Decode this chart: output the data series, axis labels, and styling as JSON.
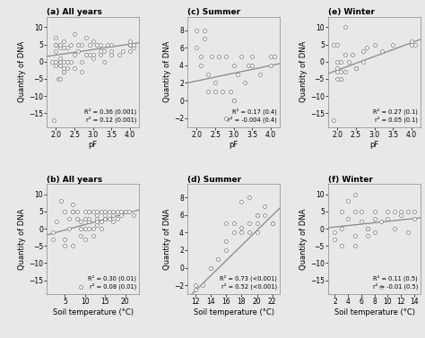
{
  "panels": [
    {
      "label": "(a) All years",
      "xlabel": "pF",
      "ylabel": "Quantity of DNA",
      "xlim": [
        1.75,
        4.25
      ],
      "ylim": [
        -19,
        13
      ],
      "xticks": [
        2,
        2.5,
        3,
        3.5,
        4
      ],
      "yticks": [
        -15,
        -10,
        -5,
        0,
        5,
        10
      ],
      "annotation": "R² = 0.36 (0.001)\nr² = 0.12 (0.001)",
      "scatter_x": [
        1.9,
        2.0,
        2.0,
        2.0,
        2.0,
        2.0,
        2.0,
        2.1,
        2.1,
        2.1,
        2.1,
        2.1,
        2.2,
        2.2,
        2.2,
        2.2,
        2.2,
        2.3,
        2.3,
        2.4,
        2.4,
        2.5,
        2.5,
        2.6,
        2.6,
        2.7,
        2.7,
        2.8,
        2.8,
        2.9,
        2.9,
        3.0,
        3.0,
        3.1,
        3.2,
        3.2,
        3.3,
        3.3,
        3.4,
        3.5,
        3.5,
        3.7,
        3.8,
        4.0,
        4.0,
        4.0,
        4.0,
        4.1,
        4.1,
        1.95,
        2.05,
        2.1,
        2.2,
        2.3,
        2.5,
        2.7,
        3.0,
        3.2,
        3.5,
        4.0
      ],
      "scatter_y": [
        0,
        -1,
        0,
        3,
        5,
        5,
        7,
        -1,
        0,
        1,
        4,
        5,
        -3,
        -2,
        0,
        4,
        6,
        0,
        4,
        0,
        5,
        2,
        8,
        3,
        5,
        -3,
        5,
        2,
        7,
        2,
        5,
        2,
        6,
        5,
        2,
        5,
        0,
        3,
        5,
        3,
        5,
        2,
        3,
        5,
        5,
        5,
        6,
        4,
        5,
        -17,
        -5,
        -5,
        -3,
        -2,
        -2,
        0,
        1,
        3,
        2,
        3
      ],
      "line_x": [
        1.75,
        4.25
      ],
      "line_y": [
        1.5,
        5.5
      ]
    },
    {
      "label": "(c) Summer",
      "xlabel": "pF",
      "ylabel": "Quantity of DNA",
      "xlim": [
        1.75,
        4.25
      ],
      "ylim": [
        -3,
        9.5
      ],
      "xticks": [
        2,
        2.5,
        3,
        3.5,
        4
      ],
      "yticks": [
        -2,
        0,
        2,
        4,
        6,
        8
      ],
      "annotation": "R² = 0.17 (0.4)\nr² = -0.004 (0.4)",
      "scatter_x": [
        2.0,
        2.0,
        2.1,
        2.2,
        2.2,
        2.3,
        2.4,
        2.5,
        2.6,
        2.7,
        2.8,
        2.9,
        3.0,
        3.0,
        3.1,
        3.2,
        3.3,
        3.4,
        3.5,
        3.7,
        4.0,
        4.0,
        4.1,
        2.1,
        2.3,
        2.5,
        2.8,
        3.0,
        3.5
      ],
      "scatter_y": [
        6,
        8,
        5,
        7,
        8,
        1,
        5,
        2,
        5,
        1,
        -2,
        1,
        0,
        4,
        3,
        5,
        2,
        4,
        4,
        3,
        4,
        5,
        5,
        4,
        3,
        1,
        5,
        0,
        5
      ],
      "line_x": [
        1.75,
        4.25
      ],
      "line_y": [
        2.0,
        4.2
      ]
    },
    {
      "label": "(e) Winter",
      "xlabel": "pF",
      "ylabel": "Quantity of DNA",
      "xlim": [
        1.75,
        4.25
      ],
      "ylim": [
        -19,
        13
      ],
      "xticks": [
        2,
        2.5,
        3,
        3.5,
        4
      ],
      "yticks": [
        -15,
        -10,
        -5,
        0,
        5,
        10
      ],
      "annotation": "R² = 0.27 (0.1)\nr² = 0.05 (0.1)",
      "scatter_x": [
        1.9,
        2.0,
        2.0,
        2.0,
        2.0,
        2.1,
        2.1,
        2.1,
        2.2,
        2.2,
        2.3,
        2.4,
        2.5,
        2.7,
        2.8,
        3.0,
        3.2,
        3.5,
        4.0,
        4.0,
        4.1,
        1.9,
        2.0,
        2.1,
        2.2,
        2.5,
        2.7
      ],
      "scatter_y": [
        5,
        -3,
        -2,
        0,
        5,
        -5,
        -3,
        0,
        2,
        10,
        0,
        2,
        -2,
        3,
        4,
        5,
        3,
        5,
        5,
        6,
        5,
        -17,
        -5,
        -5,
        -3,
        -2,
        0
      ],
      "line_x": [
        1.75,
        4.25
      ],
      "line_y": [
        -3.5,
        6.5
      ]
    },
    {
      "label": "(b) All years",
      "xlabel": "Soil temperature (°C)",
      "ylabel": "Quantity of DNA",
      "xlim": [
        0.5,
        23.5
      ],
      "ylim": [
        -19,
        13
      ],
      "xticks": [
        5,
        10,
        15,
        20
      ],
      "yticks": [
        -15,
        -10,
        -5,
        0,
        5,
        10
      ],
      "annotation": "R² = 0.30 (0.01)\nr² = 0.08 (0.01)",
      "scatter_x": [
        2,
        2,
        3,
        4,
        5,
        5,
        6,
        6,
        7,
        7,
        7,
        8,
        8,
        9,
        9,
        9,
        10,
        10,
        10,
        10,
        11,
        11,
        11,
        12,
        12,
        12,
        13,
        13,
        13,
        13,
        14,
        14,
        14,
        15,
        15,
        15,
        16,
        16,
        17,
        17,
        17,
        18,
        18,
        19,
        19,
        20,
        20,
        21,
        22,
        5,
        7,
        9,
        11,
        13,
        15
      ],
      "scatter_y": [
        -1,
        -3,
        2,
        8,
        -5,
        5,
        0,
        3,
        5,
        5,
        7,
        3,
        5,
        -17,
        0,
        2,
        -3,
        0,
        3,
        5,
        2,
        3,
        5,
        -2,
        0,
        5,
        1,
        3,
        4,
        5,
        0,
        2,
        5,
        3,
        4,
        5,
        3,
        5,
        2,
        4,
        5,
        3,
        5,
        4,
        5,
        5,
        5,
        5,
        4,
        -3,
        -5,
        -2,
        0,
        2,
        3
      ],
      "line_x": [
        0.5,
        23.5
      ],
      "line_y": [
        -1.8,
        5.5
      ]
    },
    {
      "label": "(d) Summer",
      "xlabel": "Soil temperature (°C)",
      "ylabel": "Quantity of DNA",
      "xlim": [
        11,
        23
      ],
      "ylim": [
        -3,
        9.5
      ],
      "xticks": [
        12,
        14,
        16,
        18,
        20,
        22
      ],
      "yticks": [
        -2,
        0,
        2,
        4,
        6,
        8
      ],
      "annotation": "R² = 0.73 (<0.001)\nr² = 0.52 (<0.001)",
      "scatter_x": [
        12,
        12,
        13,
        14,
        15,
        16,
        16,
        17,
        17,
        18,
        18,
        19,
        19,
        19,
        20,
        20,
        20,
        21,
        21,
        22,
        22,
        14,
        16,
        18,
        20
      ],
      "scatter_y": [
        -2.5,
        -2,
        -2,
        0,
        1,
        2,
        5,
        4,
        5,
        4,
        7.5,
        4,
        5,
        8,
        4,
        5,
        6,
        6,
        7,
        5,
        5,
        0,
        3,
        4.5,
        6
      ],
      "line_x": [
        11,
        23
      ],
      "line_y": [
        -3.5,
        6.8
      ]
    },
    {
      "label": "(f) Winter",
      "xlabel": "Soil temperature (°C)",
      "ylabel": "Quantity of DNA",
      "xlim": [
        1,
        15
      ],
      "ylim": [
        -19,
        13
      ],
      "xticks": [
        2,
        4,
        6,
        8,
        10,
        12,
        14
      ],
      "yticks": [
        -15,
        -10,
        -5,
        0,
        5,
        10
      ],
      "annotation": "R² = 0.11 (0.5)\nr² = -0.01 (0.5)",
      "scatter_x": [
        2,
        2,
        3,
        3,
        4,
        4,
        5,
        5,
        5,
        6,
        6,
        7,
        7,
        8,
        8,
        8,
        9,
        9,
        10,
        10,
        11,
        11,
        12,
        12,
        13,
        13,
        14,
        14,
        3,
        5,
        7
      ],
      "scatter_y": [
        -1,
        -3,
        0,
        5,
        3,
        8,
        -5,
        5,
        10,
        2,
        5,
        -2,
        0,
        -1,
        3,
        5,
        -17,
        2,
        3,
        5,
        0,
        5,
        4,
        5,
        -1,
        5,
        3,
        5,
        -5,
        -2,
        0
      ],
      "line_x": [
        1,
        15
      ],
      "line_y": [
        0.3,
        3.2
      ]
    }
  ],
  "scatter_facecolor": "#e8e8e8",
  "scatter_edgecolor": "#888888",
  "line_color": "#888888",
  "bg_color": "#e8e8e8",
  "face_color": "#e8e8e8"
}
